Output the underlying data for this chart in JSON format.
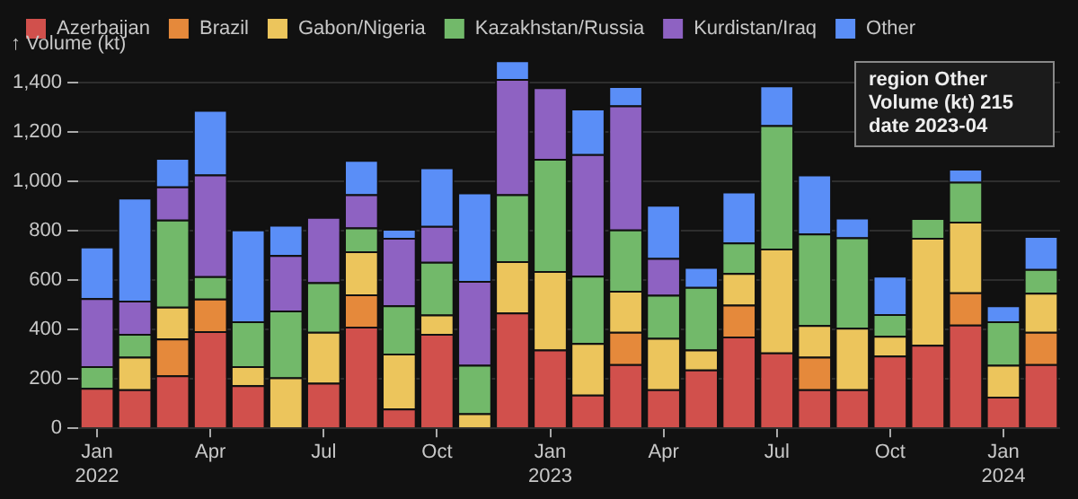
{
  "chart_data": {
    "type": "bar",
    "stacked": true,
    "ylabel": "↑ Volume (kt)",
    "categories": [
      "Jan 2022",
      null,
      null,
      "Apr",
      null,
      null,
      "Jul",
      null,
      null,
      "Oct",
      null,
      null,
      "Jan 2023",
      null,
      null,
      "Apr",
      null,
      null,
      "Jul",
      null,
      null,
      "Oct",
      null,
      null,
      "Jan 2024",
      null
    ],
    "series": [
      {
        "name": "Azerbaijan",
        "color": "#d1504c",
        "values": [
          163,
          158,
          214,
          393,
          174,
          0,
          184,
          411,
          80,
          382,
          0,
          468,
          318,
          136,
          259,
          158,
          238,
          371,
          307,
          158,
          158,
          294,
          337,
          419,
          128,
          259
        ]
      },
      {
        "name": "Brazil",
        "color": "#e5893b",
        "values": [
          0,
          0,
          149,
          131,
          0,
          0,
          0,
          131,
          0,
          0,
          0,
          0,
          0,
          0,
          131,
          0,
          0,
          129,
          0,
          131,
          0,
          0,
          0,
          131,
          0,
          131
        ]
      },
      {
        "name": "Gabon/Nigeria",
        "color": "#ecc55c",
        "values": [
          0,
          131,
          129,
          0,
          77,
          206,
          206,
          174,
          222,
          78,
          61,
          208,
          318,
          209,
          166,
          208,
          80,
          128,
          420,
          128,
          248,
          80,
          433,
          286,
          129,
          158
        ]
      },
      {
        "name": "Kazakhstan/Russia",
        "color": "#72b96a",
        "values": [
          88,
          93,
          352,
          91,
          182,
          270,
          201,
          96,
          195,
          213,
          196,
          270,
          454,
          272,
          248,
          174,
          254,
          123,
          499,
          371,
          366,
          88,
          80,
          161,
          176,
          96
        ]
      },
      {
        "name": "Kurdistan/Iraq",
        "color": "#8e62c2",
        "values": [
          275,
          134,
          134,
          411,
          0,
          224,
          264,
          134,
          273,
          145,
          339,
          467,
          289,
          492,
          502,
          149,
          0,
          0,
          0,
          0,
          0,
          0,
          0,
          0,
          0,
          0
        ]
      },
      {
        "name": "Other",
        "color": "#5a8ef7",
        "values": [
          209,
          417,
          115,
          262,
          371,
          123,
          0,
          139,
          37,
          237,
          358,
          75,
          0,
          184,
          78,
          215,
          80,
          206,
          161,
          238,
          80,
          155,
          0,
          53,
          64,
          134
        ]
      }
    ],
    "ylim": [
      0,
      1500
    ],
    "yticks": [
      0,
      {
        "value": 200,
        "label": "200"
      },
      {
        "value": 400,
        "label": "400"
      },
      {
        "value": 600,
        "label": "600"
      },
      {
        "value": 800,
        "label": "800"
      },
      {
        "value": 1000,
        "label": "1,000"
      },
      {
        "value": 1200,
        "label": "1,200"
      },
      {
        "value": 1400,
        "label": "1,400"
      }
    ],
    "grid": "y",
    "legend": "top left",
    "annotations": [
      "region Other\nVolume (kt) 215\ndate 2023-04"
    ]
  }
}
